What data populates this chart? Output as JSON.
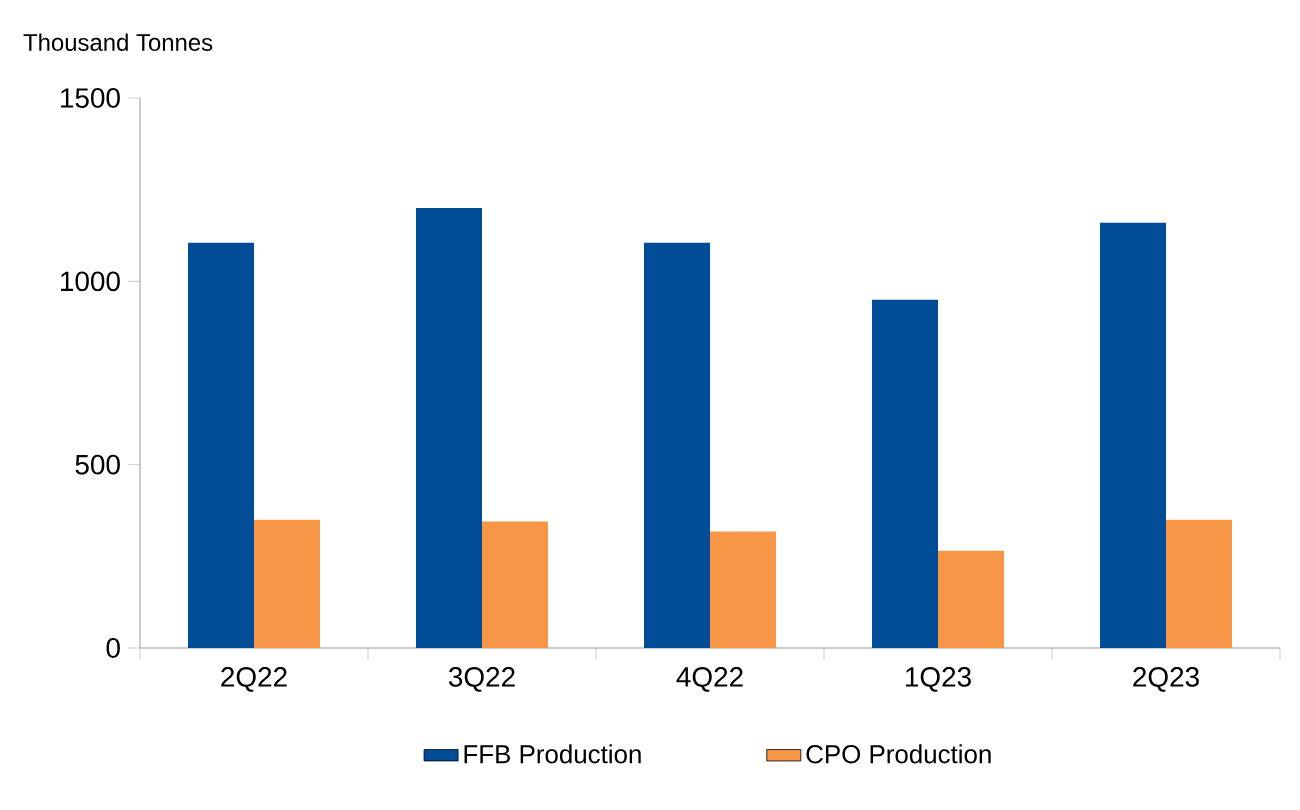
{
  "chart_data": {
    "type": "bar",
    "ylabel": "Thousand Tonnes",
    "categories": [
      "2Q22",
      "3Q22",
      "4Q22",
      "1Q23",
      "2Q23"
    ],
    "series": [
      {
        "name": "FFB Production",
        "color": "#004c97",
        "values": [
          1105,
          1200,
          1105,
          950,
          1160
        ]
      },
      {
        "name": "CPO Production",
        "color": "#f79646",
        "values": [
          350,
          345,
          318,
          265,
          350
        ]
      }
    ],
    "ylim": [
      0,
      1500
    ],
    "yticks": [
      0,
      500,
      1000,
      1500
    ],
    "legend": "bottom"
  }
}
